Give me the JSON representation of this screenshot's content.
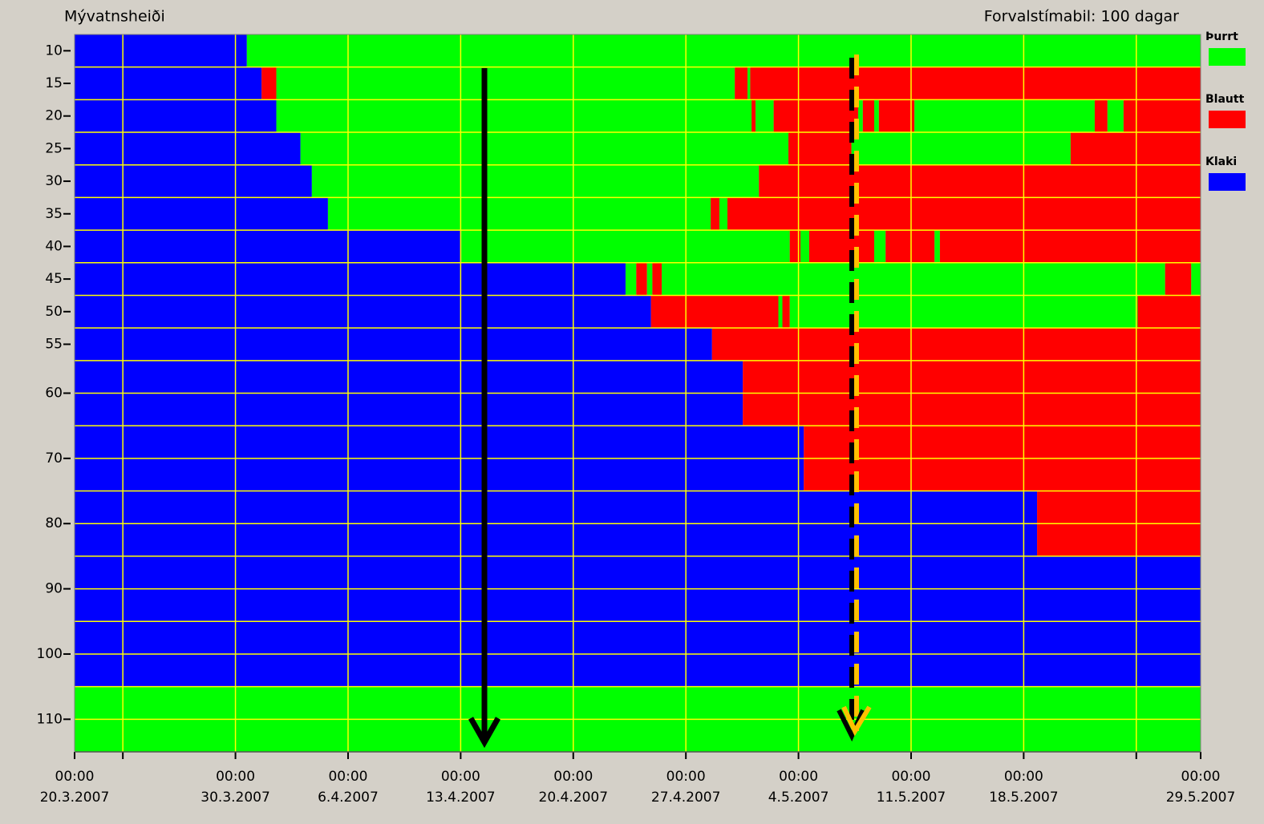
{
  "chart_data": {
    "type": "state-timeline",
    "title": "Mývatnsheiði",
    "subtitle": "Forvalstímabil: 100 dagar",
    "states": [
      {
        "name": "Þurrt",
        "color": "#00ff00"
      },
      {
        "name": "Blautt",
        "color": "#ff0000"
      },
      {
        "name": "Klaki",
        "color": "#0000ff"
      }
    ],
    "xlim": [
      "2007-03-20T00:00",
      "2007-05-29T00:00"
    ],
    "xticks": [
      {
        "value": "2007-03-20T00:00",
        "label": [
          "00:00",
          "20.3.2007"
        ]
      },
      {
        "value": "2007-03-30T00:00",
        "label": [
          "00:00",
          "30.3.2007"
        ]
      },
      {
        "value": "2007-04-06T00:00",
        "label": [
          "00:00",
          "6.4.2007"
        ]
      },
      {
        "value": "2007-04-13T00:00",
        "label": [
          "00:00",
          "13.4.2007"
        ]
      },
      {
        "value": "2007-04-20T00:00",
        "label": [
          "00:00",
          "20.4.2007"
        ]
      },
      {
        "value": "2007-04-27T00:00",
        "label": [
          "00:00",
          "27.4.2007"
        ]
      },
      {
        "value": "2007-05-04T00:00",
        "label": [
          "00:00",
          "4.5.2007"
        ]
      },
      {
        "value": "2007-05-11T00:00",
        "label": [
          "00:00",
          "11.5.2007"
        ]
      },
      {
        "value": "2007-05-18T00:00",
        "label": [
          "00:00",
          "18.5.2007"
        ]
      },
      {
        "value": "2007-05-29T00:00",
        "label": [
          "00:00",
          "29.5.2007"
        ]
      }
    ],
    "xminorticks": [
      "2007-03-23T00:00",
      "2007-05-25T00:00"
    ],
    "grid": true,
    "legend": "right",
    "rows": [
      {
        "depth": 10,
        "segments": [
          {
            "state": 2,
            "to": "2007-03-30T17:00"
          },
          {
            "state": 0,
            "to": "2007-05-29T00:00"
          }
        ]
      },
      {
        "depth": 15,
        "segments": [
          {
            "state": 2,
            "to": "2007-03-31T15:00"
          },
          {
            "state": 1,
            "to": "2007-04-01T13:00"
          },
          {
            "state": 0,
            "to": "2007-04-30T01:00"
          },
          {
            "state": 1,
            "to": "2007-04-30T20:00"
          },
          {
            "state": 0,
            "to": "2007-05-01T00:00"
          },
          {
            "state": 1,
            "to": "2007-05-29T00:00"
          }
        ]
      },
      {
        "depth": 20,
        "segments": [
          {
            "state": 2,
            "to": "2007-04-01T13:00"
          },
          {
            "state": 0,
            "to": "2007-05-01T02:00"
          },
          {
            "state": 1,
            "to": "2007-05-01T08:00"
          },
          {
            "state": 0,
            "to": "2007-05-02T11:00"
          },
          {
            "state": 1,
            "to": "2007-05-07T17:00"
          },
          {
            "state": 0,
            "to": "2007-05-08T00:00"
          },
          {
            "state": 1,
            "to": "2007-05-08T17:00"
          },
          {
            "state": 0,
            "to": "2007-05-09T00:00"
          },
          {
            "state": 1,
            "to": "2007-05-11T05:00"
          },
          {
            "state": 0,
            "to": "2007-05-22T10:00"
          },
          {
            "state": 1,
            "to": "2007-05-23T05:00"
          },
          {
            "state": 0,
            "to": "2007-05-24T05:00"
          },
          {
            "state": 1,
            "to": "2007-05-29T00:00"
          }
        ]
      },
      {
        "depth": 25,
        "segments": [
          {
            "state": 2,
            "to": "2007-04-03T01:00"
          },
          {
            "state": 0,
            "to": "2007-05-03T09:00"
          },
          {
            "state": 1,
            "to": "2007-05-07T07:00"
          },
          {
            "state": 0,
            "to": "2007-05-20T22:00"
          },
          {
            "state": 1,
            "to": "2007-05-29T00:00"
          }
        ]
      },
      {
        "depth": 30,
        "segments": [
          {
            "state": 2,
            "to": "2007-04-03T18:00"
          },
          {
            "state": 0,
            "to": "2007-05-01T13:00"
          },
          {
            "state": 1,
            "to": "2007-05-29T00:00"
          }
        ]
      },
      {
        "depth": 35,
        "segments": [
          {
            "state": 2,
            "to": "2007-04-04T18:00"
          },
          {
            "state": 0,
            "to": "2007-04-28T13:00"
          },
          {
            "state": 1,
            "to": "2007-04-29T02:00"
          },
          {
            "state": 0,
            "to": "2007-04-29T14:00"
          },
          {
            "state": 1,
            "to": "2007-05-29T00:00"
          }
        ]
      },
      {
        "depth": 40,
        "segments": [
          {
            "state": 2,
            "to": "2007-04-13T01:00"
          },
          {
            "state": 0,
            "to": "2007-05-03T11:00"
          },
          {
            "state": 1,
            "to": "2007-05-04T03:00"
          },
          {
            "state": 0,
            "to": "2007-05-04T16:00"
          },
          {
            "state": 1,
            "to": "2007-05-08T17:00"
          },
          {
            "state": 0,
            "to": "2007-05-09T10:00"
          },
          {
            "state": 1,
            "to": "2007-05-12T11:00"
          },
          {
            "state": 0,
            "to": "2007-05-12T19:00"
          },
          {
            "state": 1,
            "to": "2007-05-29T00:00"
          }
        ]
      },
      {
        "depth": 45,
        "segments": [
          {
            "state": 2,
            "to": "2007-04-23T06:00"
          },
          {
            "state": 0,
            "to": "2007-04-23T22:00"
          },
          {
            "state": 1,
            "to": "2007-04-24T14:00"
          },
          {
            "state": 0,
            "to": "2007-04-24T22:00"
          },
          {
            "state": 1,
            "to": "2007-04-25T12:00"
          },
          {
            "state": 0,
            "to": "2007-05-26T19:00"
          },
          {
            "state": 1,
            "to": "2007-05-28T10:00"
          },
          {
            "state": 0,
            "to": "2007-05-29T00:00"
          }
        ]
      },
      {
        "depth": 50,
        "segments": [
          {
            "state": 2,
            "to": "2007-04-24T20:00"
          },
          {
            "state": 1,
            "to": "2007-05-02T18:00"
          },
          {
            "state": 0,
            "to": "2007-05-03T00:00"
          },
          {
            "state": 1,
            "to": "2007-05-03T11:00"
          },
          {
            "state": 0,
            "to": "2007-05-25T02:00"
          },
          {
            "state": 1,
            "to": "2007-05-29T00:00"
          }
        ]
      },
      {
        "depth": 55,
        "segments": [
          {
            "state": 2,
            "to": "2007-04-28T15:00"
          },
          {
            "state": 1,
            "to": "2007-05-29T00:00"
          }
        ]
      },
      {
        "depth": 60,
        "segments": [
          {
            "state": 2,
            "to": "2007-04-30T13:00"
          },
          {
            "state": 1,
            "to": "2007-05-29T00:00"
          }
        ]
      },
      {
        "depth": 70,
        "segments": [
          {
            "state": 2,
            "to": "2007-05-04T08:00"
          },
          {
            "state": 1,
            "to": "2007-05-29T00:00"
          }
        ]
      },
      {
        "depth": 80,
        "segments": [
          {
            "state": 2,
            "to": "2007-05-18T20:00"
          },
          {
            "state": 1,
            "to": "2007-05-29T00:00"
          }
        ]
      },
      {
        "depth": 90,
        "segments": [
          {
            "state": 2,
            "to": "2007-05-29T00:00"
          }
        ]
      },
      {
        "depth": 100,
        "segments": [
          {
            "state": 2,
            "to": "2007-05-29T00:00"
          }
        ]
      },
      {
        "depth": 110,
        "segments": [
          {
            "state": 0,
            "to": "2007-05-29T00:00"
          }
        ]
      }
    ]
  }
}
